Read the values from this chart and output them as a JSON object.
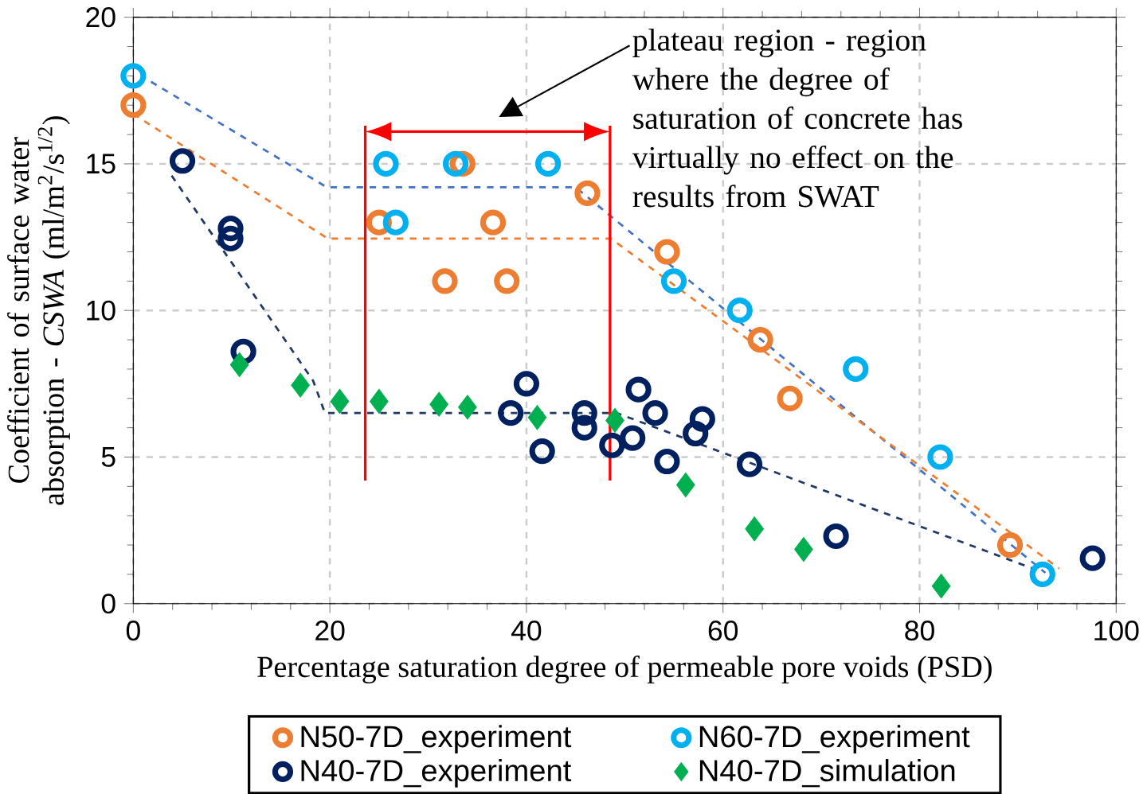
{
  "chart_data": {
    "type": "scatter",
    "xlabel": "Percentage saturation degree of permeable pore voids (PSD)",
    "ylabel": "Coefficient of surface water absorption - *CSWA* (ml/m$^{2}$/s$^{1/2}$)",
    "xlim": [
      0,
      100
    ],
    "ylim": [
      0,
      20
    ],
    "xticks": [
      0,
      20,
      40,
      60,
      80,
      100
    ],
    "yticks": [
      0,
      5,
      10,
      15,
      20
    ],
    "grid": true,
    "legend": "bottom",
    "series": [
      {
        "name": "N50-7D_experiment",
        "color": "#ed7d31",
        "marker": "circle",
        "x": [
          0,
          33.5,
          46.2,
          25,
          36.6,
          31.7,
          38,
          54.3,
          63.8,
          66.8,
          89.2
        ],
        "values": [
          17,
          15,
          14,
          13,
          13,
          11,
          11,
          12,
          9,
          7,
          2
        ]
      },
      {
        "name": "N60-7D_experiment",
        "color": "#00b0f0",
        "marker": "circle",
        "x": [
          0,
          25.7,
          32.8,
          42.2,
          26.7,
          55,
          61.7,
          73.5,
          82.1,
          92.5
        ],
        "values": [
          18,
          15,
          15,
          15,
          13,
          11,
          10,
          8,
          5,
          1
        ]
      },
      {
        "name": "N40-7D_experiment",
        "color": "#002060",
        "marker": "circle",
        "x": [
          5,
          9.9,
          9.9,
          11.2,
          40,
          38.4,
          41.6,
          45.9,
          45.9,
          48.7,
          50.8,
          51.4,
          53.1,
          54.3,
          57.2,
          57.9,
          62.7,
          71.5,
          97.6
        ],
        "values": [
          15.1,
          12.8,
          12.45,
          8.6,
          7.5,
          6.5,
          5.2,
          6.5,
          6,
          5.4,
          5.65,
          7.3,
          6.5,
          4.85,
          5.8,
          6.3,
          4.75,
          2.3,
          1.55
        ]
      },
      {
        "name": "N40-7D_simulation",
        "color": "#00b050",
        "marker": "diamond",
        "x": [
          10.8,
          17,
          21,
          25,
          31.1,
          34,
          41.1,
          49,
          56.2,
          63.2,
          68.2,
          82.2
        ],
        "values": [
          8.15,
          7.45,
          6.9,
          6.9,
          6.8,
          6.7,
          6.35,
          6.25,
          4.05,
          2.55,
          1.85,
          0.6
        ]
      },
      {
        "type": "line",
        "color": "#4472c4",
        "line_style": "dashed",
        "marker": "none",
        "x": [
          1.8,
          19.7,
          45,
          92.8
        ],
        "values": [
          17.8,
          14.2,
          14.2,
          1.05
        ]
      },
      {
        "type": "line",
        "color": "#ed7d31",
        "line_style": "dashed",
        "marker": "none",
        "x": [
          0,
          19.8,
          48.6,
          94.2
        ],
        "values": [
          16.7,
          12.45,
          12.45,
          1.2
        ]
      },
      {
        "type": "line",
        "color": "#1f3864",
        "line_style": "dashed",
        "marker": "none",
        "x": [
          3.9,
          18.3,
          19.5,
          49.2,
          92.3
        ],
        "values": [
          14.6,
          7.6,
          6.5,
          6.5,
          1.1
        ]
      }
    ],
    "ref_lines": [
      {
        "axis": "x",
        "value": 23.6,
        "color": "#ff0000"
      },
      {
        "axis": "x",
        "value": 48.5,
        "color": "#ff0000"
      }
    ],
    "annotations": [
      "plateau region - region where the degree of saturation of concrete has virtually no effect on the results from SWAT"
    ]
  }
}
